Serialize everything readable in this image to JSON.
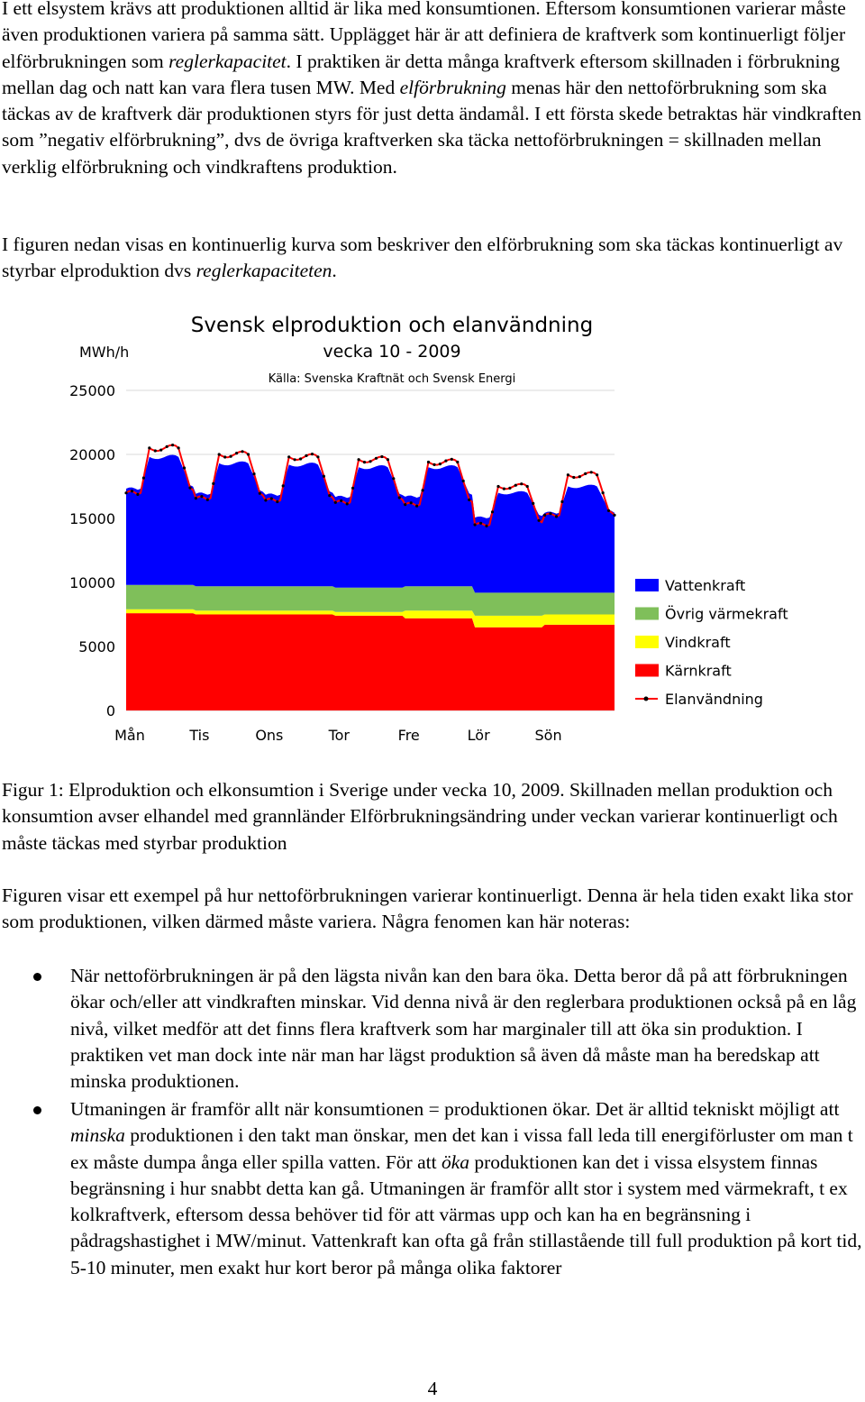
{
  "paragraphs": {
    "p1": {
      "a": "I ett elsystem krävs att produktionen alltid är lika med konsumtionen. Eftersom konsumtionen varierar måste även produktionen variera på samma sätt. Upplägget här är att definiera de kraftverk som kontinuerligt följer elförbrukningen som ",
      "b": "reglerkapacitet",
      "c": ". I praktiken är detta många kraftverk eftersom skillnaden i förbrukning mellan dag och natt kan vara flera tusen MW. Med ",
      "d": "elförbrukning",
      "e": " menas här den nettoförbrukning som ska täckas av de kraftverk där produktionen styrs för just detta ändamål. I ett första skede betraktas här vindkraften som ”negativ elförbrukning”, dvs de övriga kraftverken ska täcka nettoförbrukningen = skillnaden mellan verklig elförbrukning och vindkraftens produktion."
    },
    "p2": {
      "a": "I figuren nedan visas en kontinuerlig kurva som beskriver den elförbrukning som ska täckas kontinuerligt av styrbar elproduktion dvs ",
      "b": "reglerkapaciteten",
      "c": "."
    },
    "caption": "Figur 1: Elproduktion och elkonsumtion i Sverige under vecka 10, 2009. Skillnaden mellan produktion och konsumtion avser elhandel med grannländer Elförbrukningsändring under veckan varierar kontinuerligt och måste täckas med styrbar produktion",
    "p3": "Figuren visar ett exempel på hur nettoförbrukningen varierar kontinuerligt. Denna är hela tiden exakt lika stor som produktionen, vilken därmed måste variera. Några fenomen kan här noteras:"
  },
  "bullets": {
    "b1": "När nettoförbrukningen är på den lägsta nivån kan den bara öka. Detta beror då på att förbrukningen ökar och/eller att vindkraften minskar. Vid denna nivå är den reglerbara produktionen också på en låg nivå, vilket medför att det finns flera kraftverk som har marginaler till att öka sin produktion. I praktiken vet man dock inte när man har lägst produktion så även då måste man ha beredskap att minska produktionen.",
    "b2": {
      "a": "Utmaningen är framför allt när konsumtionen = produktionen ökar. Det är alltid tekniskt möjligt att ",
      "b": "minska",
      "c": " produktionen i den takt man önskar, men det kan i vissa fall leda till energiförluster om man t ex måste dumpa ånga eller spilla vatten. För att ",
      "d": "öka",
      "e": " produktionen kan det i vissa elsystem finnas begränsning i hur snabbt detta kan gå. Utmaningen är framför allt stor i system med värmekraft, t ex kolkraftverk, eftersom dessa behöver tid för att värmas upp och kan ha en begränsning i pådragshastighet i MW/minut. Vattenkraft kan ofta gå från stillastående till full produktion på kort tid, 5-10 minuter, men exakt hur kort beror på många olika faktorer"
    }
  },
  "page_number": "4",
  "chart_data": {
    "type": "area",
    "title": "Svensk elproduktion och elanvändning",
    "subtitle": "vecka 10 - 2009",
    "source": "Källa: Svenska Kraftnät och Svensk Energi",
    "ylabel": "MWh/h",
    "ylim": [
      0,
      25000
    ],
    "yticks": [
      "25000",
      "20000",
      "15000",
      "10000",
      "5000",
      "0"
    ],
    "categories": [
      "Mån",
      "Tis",
      "Ons",
      "Tor",
      "Fre",
      "Lör",
      "Sön"
    ],
    "stacked": true,
    "legend_position": "right",
    "series": [
      {
        "name": "Kärnkraft",
        "color": "#ff0000",
        "values": [
          7600,
          7500,
          7500,
          7400,
          7200,
          6500,
          6700
        ]
      },
      {
        "name": "Vindkraft",
        "color": "#ffff00",
        "values": [
          300,
          300,
          300,
          300,
          600,
          900,
          800
        ]
      },
      {
        "name": "Övrig värmekraft",
        "color": "#7fbf5a",
        "values": [
          1900,
          1900,
          1900,
          1900,
          1900,
          1800,
          1700
        ]
      },
      {
        "name": "Vattenkraft",
        "color": "#0000ff",
        "values": [
          10000,
          9600,
          9500,
          9400,
          9300,
          7800,
          8300
        ]
      },
      {
        "name": "Elanvändning",
        "color": "#000000",
        "type": "line",
        "values": [
          20500,
          20000,
          19800,
          19600,
          19400,
          17500,
          18400
        ]
      }
    ]
  }
}
